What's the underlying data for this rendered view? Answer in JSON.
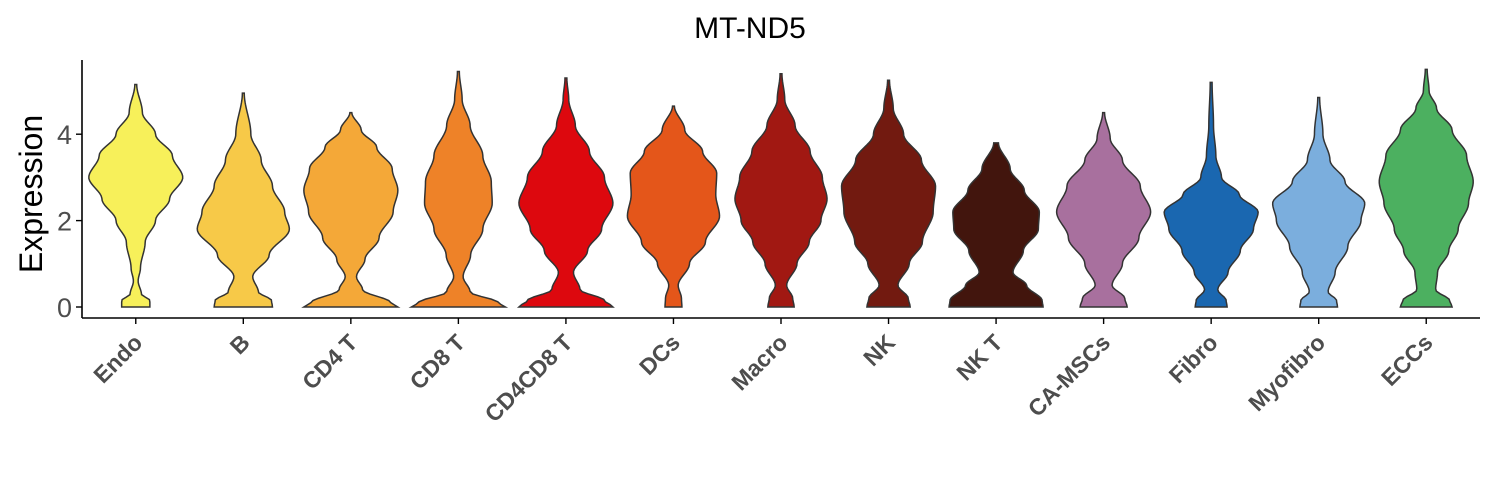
{
  "chart_data": {
    "type": "violin",
    "title": "MT-ND5",
    "xlabel": "",
    "ylabel": "Expression",
    "ylim": [
      -0.3,
      5.65
    ],
    "yticks": [
      0,
      2,
      4
    ],
    "grid": false,
    "legend": "none",
    "categories": [
      "Endo",
      "B",
      "CD4 T",
      "CD8 T",
      "CD4CD8 T",
      "DCs",
      "Macro",
      "NK",
      "NK T",
      "CA-MSCs",
      "Fibro",
      "Myofibro",
      "ECCs"
    ],
    "colors": [
      "#F7F05A",
      "#F7C948",
      "#F4A838",
      "#EE8228",
      "#DD080E",
      "#E4561A",
      "#A11812",
      "#721A10",
      "#42150D",
      "#A8709E",
      "#1A67B0",
      "#7BAEDD",
      "#4CB060"
    ],
    "violins": [
      {
        "name": "Endo",
        "max": 5.15,
        "profile": [
          [
            0,
            0.3
          ],
          [
            0.15,
            0.3
          ],
          [
            0.3,
            0.12
          ],
          [
            0.6,
            0.05
          ],
          [
            0.9,
            0.1
          ],
          [
            1.5,
            0.2
          ],
          [
            2.0,
            0.42
          ],
          [
            2.5,
            0.72
          ],
          [
            3.0,
            1.0
          ],
          [
            3.5,
            0.78
          ],
          [
            4.0,
            0.42
          ],
          [
            4.5,
            0.14
          ],
          [
            5.15,
            0.02
          ]
        ]
      },
      {
        "name": "B",
        "max": 4.95,
        "profile": [
          [
            0,
            0.62
          ],
          [
            0.15,
            0.6
          ],
          [
            0.35,
            0.32
          ],
          [
            0.7,
            0.2
          ],
          [
            1.2,
            0.55
          ],
          [
            1.8,
            0.98
          ],
          [
            2.2,
            0.88
          ],
          [
            2.8,
            0.62
          ],
          [
            3.4,
            0.38
          ],
          [
            4.0,
            0.16
          ],
          [
            4.95,
            0.02
          ]
        ]
      },
      {
        "name": "CD4 T",
        "max": 4.5,
        "profile": [
          [
            0,
            1.0
          ],
          [
            0.1,
            0.85
          ],
          [
            0.4,
            0.25
          ],
          [
            0.7,
            0.12
          ],
          [
            1.1,
            0.3
          ],
          [
            1.6,
            0.6
          ],
          [
            2.2,
            0.9
          ],
          [
            2.7,
            1.0
          ],
          [
            3.2,
            0.88
          ],
          [
            3.7,
            0.55
          ],
          [
            4.1,
            0.22
          ],
          [
            4.5,
            0.02
          ]
        ]
      },
      {
        "name": "CD8 T",
        "max": 5.45,
        "profile": [
          [
            0,
            1.0
          ],
          [
            0.1,
            0.85
          ],
          [
            0.35,
            0.25
          ],
          [
            0.7,
            0.1
          ],
          [
            1.2,
            0.26
          ],
          [
            1.8,
            0.52
          ],
          [
            2.4,
            0.72
          ],
          [
            2.9,
            0.7
          ],
          [
            3.5,
            0.52
          ],
          [
            4.2,
            0.25
          ],
          [
            4.8,
            0.08
          ],
          [
            5.45,
            0.02
          ]
        ]
      },
      {
        "name": "CD4CD8 T",
        "max": 5.3,
        "profile": [
          [
            0,
            1.0
          ],
          [
            0.15,
            0.82
          ],
          [
            0.4,
            0.3
          ],
          [
            0.8,
            0.16
          ],
          [
            1.3,
            0.46
          ],
          [
            1.8,
            0.76
          ],
          [
            2.4,
            1.0
          ],
          [
            3.0,
            0.82
          ],
          [
            3.6,
            0.5
          ],
          [
            4.2,
            0.2
          ],
          [
            4.8,
            0.06
          ],
          [
            5.3,
            0.02
          ]
        ]
      },
      {
        "name": "DCs",
        "max": 4.65,
        "profile": [
          [
            0,
            0.18
          ],
          [
            0.2,
            0.17
          ],
          [
            0.5,
            0.1
          ],
          [
            1.0,
            0.34
          ],
          [
            1.5,
            0.68
          ],
          [
            2.1,
            0.98
          ],
          [
            2.6,
            0.9
          ],
          [
            3.1,
            0.92
          ],
          [
            3.6,
            0.62
          ],
          [
            4.1,
            0.24
          ],
          [
            4.65,
            0.02
          ]
        ]
      },
      {
        "name": "Macro",
        "max": 5.4,
        "profile": [
          [
            0,
            0.28
          ],
          [
            0.2,
            0.25
          ],
          [
            0.5,
            0.12
          ],
          [
            1.0,
            0.34
          ],
          [
            1.5,
            0.6
          ],
          [
            2.0,
            0.85
          ],
          [
            2.5,
            0.98
          ],
          [
            3.0,
            0.88
          ],
          [
            3.6,
            0.62
          ],
          [
            4.2,
            0.3
          ],
          [
            4.8,
            0.08
          ],
          [
            5.4,
            0.02
          ]
        ]
      },
      {
        "name": "NK",
        "max": 5.25,
        "profile": [
          [
            0,
            0.46
          ],
          [
            0.2,
            0.42
          ],
          [
            0.5,
            0.2
          ],
          [
            1.0,
            0.44
          ],
          [
            1.5,
            0.72
          ],
          [
            2.2,
            0.95
          ],
          [
            2.8,
            1.0
          ],
          [
            3.4,
            0.7
          ],
          [
            4.0,
            0.32
          ],
          [
            4.6,
            0.1
          ],
          [
            5.25,
            0.02
          ]
        ]
      },
      {
        "name": "NK T",
        "max": 3.8,
        "profile": [
          [
            0,
            1.0
          ],
          [
            0.15,
            0.98
          ],
          [
            0.5,
            0.65
          ],
          [
            0.8,
            0.36
          ],
          [
            1.3,
            0.58
          ],
          [
            1.8,
            0.9
          ],
          [
            2.2,
            0.92
          ],
          [
            2.7,
            0.6
          ],
          [
            3.2,
            0.3
          ],
          [
            3.8,
            0.05
          ]
        ]
      },
      {
        "name": "CA-MSCs",
        "max": 4.5,
        "profile": [
          [
            0,
            0.5
          ],
          [
            0.2,
            0.45
          ],
          [
            0.5,
            0.18
          ],
          [
            1.0,
            0.4
          ],
          [
            1.6,
            0.75
          ],
          [
            2.2,
            1.0
          ],
          [
            2.8,
            0.78
          ],
          [
            3.4,
            0.4
          ],
          [
            3.9,
            0.14
          ],
          [
            4.5,
            0.02
          ]
        ]
      },
      {
        "name": "Fibro",
        "max": 5.2,
        "profile": [
          [
            0,
            0.34
          ],
          [
            0.15,
            0.32
          ],
          [
            0.4,
            0.14
          ],
          [
            0.8,
            0.36
          ],
          [
            1.3,
            0.62
          ],
          [
            1.8,
            0.9
          ],
          [
            2.2,
            1.0
          ],
          [
            2.6,
            0.6
          ],
          [
            3.0,
            0.22
          ],
          [
            3.5,
            0.1
          ],
          [
            4.2,
            0.05
          ],
          [
            5.2,
            0.02
          ]
        ]
      },
      {
        "name": "Myofibro",
        "max": 4.85,
        "profile": [
          [
            0,
            0.4
          ],
          [
            0.15,
            0.38
          ],
          [
            0.35,
            0.2
          ],
          [
            0.8,
            0.35
          ],
          [
            1.4,
            0.62
          ],
          [
            2.0,
            0.9
          ],
          [
            2.4,
            0.98
          ],
          [
            2.9,
            0.56
          ],
          [
            3.4,
            0.24
          ],
          [
            4.0,
            0.09
          ],
          [
            4.85,
            0.02
          ]
        ]
      },
      {
        "name": "ECCs",
        "max": 5.5,
        "profile": [
          [
            0,
            0.55
          ],
          [
            0.15,
            0.5
          ],
          [
            0.4,
            0.2
          ],
          [
            0.8,
            0.24
          ],
          [
            1.3,
            0.48
          ],
          [
            1.8,
            0.68
          ],
          [
            2.4,
            0.9
          ],
          [
            2.9,
            1.0
          ],
          [
            3.5,
            0.86
          ],
          [
            4.1,
            0.55
          ],
          [
            4.6,
            0.22
          ],
          [
            5.0,
            0.06
          ],
          [
            5.5,
            0.02
          ]
        ]
      }
    ]
  }
}
